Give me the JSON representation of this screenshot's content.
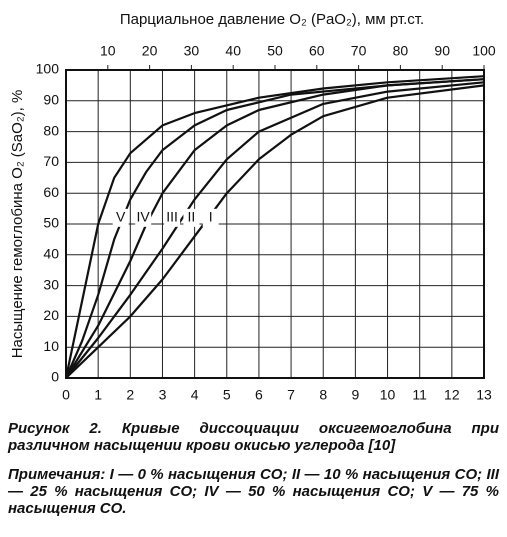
{
  "chart_data": {
    "type": "line",
    "x2label": "Парциальное давление O₂ (PaO₂), мм рт.ст.",
    "ylabel": "Насыщение гемоглобина O₂ (SaO₂), %",
    "xlim": [
      0,
      13
    ],
    "xticks": [
      0,
      1,
      2,
      3,
      4,
      5,
      6,
      7,
      8,
      9,
      10,
      11,
      12,
      13
    ],
    "x2lim": [
      0,
      100
    ],
    "x2ticks": [
      10,
      20,
      30,
      40,
      50,
      60,
      70,
      80,
      90,
      100
    ],
    "ylim": [
      0,
      100
    ],
    "yticks": [
      0,
      10,
      20,
      30,
      40,
      50,
      60,
      70,
      80,
      90,
      100
    ],
    "grid": true,
    "series": [
      {
        "name": "I",
        "color": "#111111",
        "x": [
          0,
          1,
          2,
          3,
          4,
          4.5,
          5,
          6,
          7,
          8,
          10,
          13
        ],
        "values": [
          0,
          10,
          20,
          32,
          46,
          53,
          60,
          71,
          79,
          85,
          91,
          95
        ]
      },
      {
        "name": "II",
        "color": "#111111",
        "x": [
          0,
          1,
          2,
          3,
          3.5,
          4,
          5,
          6,
          8,
          10,
          13
        ],
        "values": [
          0,
          13,
          27,
          42,
          50,
          58,
          71,
          80,
          89,
          93,
          96
        ]
      },
      {
        "name": "III",
        "color": "#111111",
        "x": [
          0,
          1,
          2,
          2.5,
          3,
          4,
          5,
          6,
          8,
          10,
          13
        ],
        "values": [
          0,
          17,
          38,
          50,
          60,
          74,
          82,
          87,
          92,
          95,
          97
        ]
      },
      {
        "name": "IV",
        "color": "#111111",
        "x": [
          0,
          0.5,
          1,
          1.5,
          2,
          2.5,
          3,
          4,
          5,
          7,
          10,
          13
        ],
        "values": [
          0,
          12,
          27,
          45,
          58,
          67,
          74,
          82,
          87,
          92,
          95,
          97
        ]
      },
      {
        "name": "V",
        "color": "#111111",
        "x": [
          0,
          0.5,
          1,
          1.5,
          2,
          3,
          4,
          6,
          8,
          10,
          13
        ],
        "values": [
          0,
          25,
          50,
          65,
          73,
          82,
          86,
          91,
          94,
          96,
          98
        ]
      }
    ]
  },
  "caption": {
    "title": "Рисунок 2. Кривые диссоциации оксигемоглобина при различном насыщении крови окисью углерода [10]",
    "notes": "Примечания: I — 0 % насыщения CO; II — 10 % насыщения CO; III — 25 % насыщения CO; IV — 50 % насыщения CO; V — 75 % насыщения CO."
  }
}
